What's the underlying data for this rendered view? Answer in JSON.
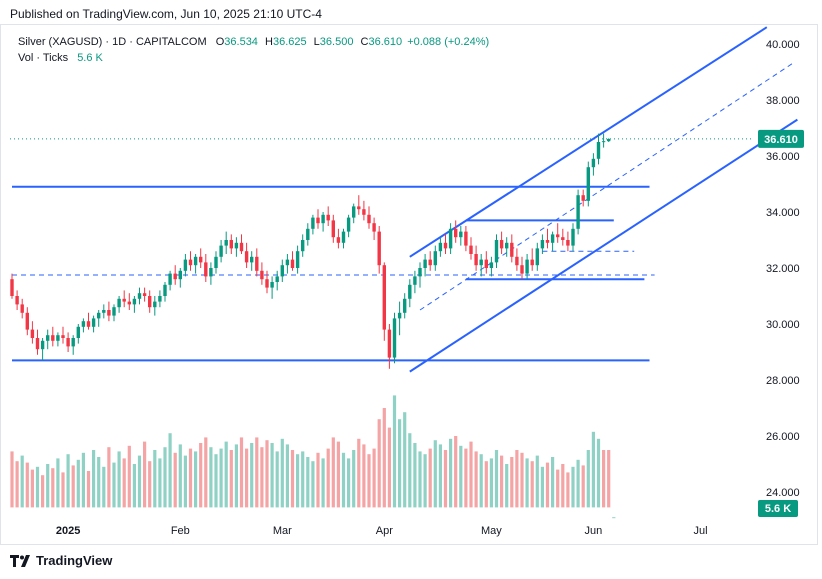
{
  "published": "Published on TradingView.com, Jun 10, 2025 21:10 UTC-4",
  "legend": {
    "symbol": "Silver (XAGUSD) · 1D · CAPITALCOM",
    "o_label": "O",
    "o": "36.534",
    "h_label": "H",
    "h": "36.625",
    "l_label": "L",
    "l": "36.500",
    "c_label": "C",
    "c": "36.610",
    "change": "+0.088 (+0.24%)",
    "vol_label": "Vol · Ticks",
    "vol": "5.6 K"
  },
  "footer": {
    "brand": "TradingView",
    "logo_icon": "tradingview-logo-icon"
  },
  "colors": {
    "up": "#089981",
    "down": "#f23645",
    "vol_up": "#8fd2c5",
    "vol_down": "#f5a4a5",
    "lines": "#2962ff"
  },
  "chart_data": {
    "type": "candlestick",
    "y_axis": {
      "min": 23.0,
      "max": 40.8,
      "ticks": [
        "24.000",
        "26.000",
        "28.000",
        "30.000",
        "32.000",
        "34.000",
        "36.000",
        "38.000",
        "40.000"
      ]
    },
    "x_axis": {
      "tick_labels": [
        "2025",
        "Feb",
        "Mar",
        "Apr",
        "May",
        "Jun",
        "Jul"
      ],
      "tick_index": [
        11,
        33,
        53,
        73,
        94,
        114,
        135
      ]
    },
    "price_label": "36.610",
    "volume_label": "5.6 K",
    "ohlc": [
      [
        31.6,
        31.8,
        30.9,
        31.0
      ],
      [
        31.0,
        31.2,
        30.5,
        30.7
      ],
      [
        30.7,
        30.9,
        30.2,
        30.4
      ],
      [
        30.4,
        30.6,
        29.6,
        29.8
      ],
      [
        29.8,
        30.1,
        29.3,
        29.5
      ],
      [
        29.5,
        29.8,
        28.9,
        29.1
      ],
      [
        29.1,
        29.5,
        28.7,
        29.4
      ],
      [
        29.4,
        29.8,
        29.1,
        29.6
      ],
      [
        29.6,
        29.9,
        29.2,
        29.4
      ],
      [
        29.4,
        29.7,
        29.2,
        29.6
      ],
      [
        29.6,
        29.9,
        29.3,
        29.5
      ],
      [
        29.5,
        29.7,
        29.0,
        29.2
      ],
      [
        29.2,
        29.6,
        28.9,
        29.5
      ],
      [
        29.5,
        30.0,
        29.3,
        29.9
      ],
      [
        29.9,
        30.2,
        29.7,
        30.1
      ],
      [
        30.1,
        30.4,
        29.8,
        29.9
      ],
      [
        29.9,
        30.3,
        29.7,
        30.2
      ],
      [
        30.2,
        30.5,
        29.9,
        30.4
      ],
      [
        30.4,
        30.7,
        30.2,
        30.5
      ],
      [
        30.5,
        30.8,
        30.1,
        30.3
      ],
      [
        30.3,
        30.7,
        30.1,
        30.6
      ],
      [
        30.6,
        31.0,
        30.4,
        30.9
      ],
      [
        30.9,
        31.2,
        30.6,
        30.8
      ],
      [
        30.8,
        31.1,
        30.5,
        30.7
      ],
      [
        30.7,
        31.0,
        30.4,
        30.9
      ],
      [
        30.9,
        31.3,
        30.7,
        31.1
      ],
      [
        31.1,
        31.3,
        30.8,
        31.0
      ],
      [
        31.0,
        31.2,
        30.4,
        30.6
      ],
      [
        30.6,
        31.0,
        30.3,
        30.8
      ],
      [
        30.8,
        31.2,
        30.6,
        31.0
      ],
      [
        31.0,
        31.5,
        30.8,
        31.4
      ],
      [
        31.4,
        31.9,
        31.2,
        31.8
      ],
      [
        31.8,
        32.1,
        31.4,
        31.6
      ],
      [
        31.6,
        32.0,
        31.3,
        31.9
      ],
      [
        31.9,
        32.5,
        31.7,
        32.3
      ],
      [
        32.3,
        32.6,
        31.9,
        32.1
      ],
      [
        32.1,
        32.5,
        31.8,
        32.4
      ],
      [
        32.4,
        32.7,
        32.0,
        32.2
      ],
      [
        32.2,
        32.5,
        31.5,
        31.7
      ],
      [
        31.7,
        32.2,
        31.4,
        32.0
      ],
      [
        32.0,
        32.6,
        31.8,
        32.4
      ],
      [
        32.4,
        33.0,
        32.2,
        32.8
      ],
      [
        32.8,
        33.3,
        32.5,
        33.0
      ],
      [
        33.0,
        33.2,
        32.5,
        32.7
      ],
      [
        32.7,
        33.1,
        32.4,
        32.9
      ],
      [
        32.9,
        33.2,
        32.5,
        32.6
      ],
      [
        32.6,
        32.9,
        32.0,
        32.2
      ],
      [
        32.2,
        32.6,
        31.9,
        32.4
      ],
      [
        32.4,
        32.7,
        31.7,
        31.9
      ],
      [
        31.9,
        32.2,
        31.4,
        31.6
      ],
      [
        31.6,
        31.9,
        31.1,
        31.3
      ],
      [
        31.3,
        31.7,
        30.9,
        31.5
      ],
      [
        31.5,
        31.9,
        31.2,
        31.7
      ],
      [
        31.7,
        32.3,
        31.5,
        32.1
      ],
      [
        32.1,
        32.5,
        31.8,
        32.3
      ],
      [
        32.3,
        32.6,
        31.9,
        32.0
      ],
      [
        32.0,
        32.8,
        31.8,
        32.6
      ],
      [
        32.6,
        33.2,
        32.4,
        33.0
      ],
      [
        33.0,
        33.6,
        32.8,
        33.4
      ],
      [
        33.4,
        33.9,
        33.2,
        33.8
      ],
      [
        33.8,
        34.1,
        33.4,
        33.6
      ],
      [
        33.6,
        34.0,
        33.3,
        33.9
      ],
      [
        33.9,
        34.2,
        33.5,
        33.7
      ],
      [
        33.7,
        33.9,
        32.9,
        33.1
      ],
      [
        33.1,
        33.4,
        32.7,
        32.9
      ],
      [
        32.9,
        33.4,
        32.7,
        33.3
      ],
      [
        33.3,
        33.9,
        33.1,
        33.8
      ],
      [
        33.8,
        34.3,
        33.6,
        34.2
      ],
      [
        34.2,
        34.6,
        33.9,
        34.1
      ],
      [
        34.1,
        34.4,
        33.7,
        33.9
      ],
      [
        33.9,
        34.2,
        33.4,
        33.6
      ],
      [
        33.6,
        33.8,
        33.0,
        33.3
      ],
      [
        33.3,
        33.5,
        31.8,
        32.1
      ],
      [
        32.1,
        32.2,
        29.4,
        29.8
      ],
      [
        29.8,
        30.0,
        28.4,
        28.8
      ],
      [
        28.8,
        30.4,
        28.6,
        30.2
      ],
      [
        30.2,
        30.8,
        29.6,
        30.4
      ],
      [
        30.4,
        31.1,
        30.2,
        30.9
      ],
      [
        30.9,
        31.6,
        30.6,
        31.4
      ],
      [
        31.4,
        31.9,
        31.1,
        31.7
      ],
      [
        31.7,
        32.2,
        31.3,
        32.0
      ],
      [
        32.0,
        32.5,
        31.7,
        32.3
      ],
      [
        32.3,
        32.6,
        31.9,
        32.1
      ],
      [
        32.1,
        32.8,
        31.9,
        32.6
      ],
      [
        32.6,
        33.1,
        32.4,
        32.9
      ],
      [
        32.9,
        33.2,
        32.5,
        32.7
      ],
      [
        32.7,
        33.6,
        32.5,
        33.4
      ],
      [
        33.4,
        33.7,
        32.9,
        33.1
      ],
      [
        33.1,
        33.5,
        32.8,
        33.3
      ],
      [
        33.3,
        33.5,
        32.6,
        32.8
      ],
      [
        32.8,
        33.1,
        32.3,
        32.5
      ],
      [
        32.5,
        32.8,
        31.9,
        32.1
      ],
      [
        32.1,
        32.5,
        31.7,
        32.3
      ],
      [
        32.3,
        32.6,
        31.8,
        32.0
      ],
      [
        32.0,
        32.4,
        31.7,
        32.2
      ],
      [
        32.2,
        33.2,
        32.0,
        33.0
      ],
      [
        33.0,
        33.3,
        32.5,
        32.7
      ],
      [
        32.7,
        33.1,
        32.4,
        32.9
      ],
      [
        32.9,
        33.2,
        32.2,
        32.4
      ],
      [
        32.4,
        32.7,
        31.9,
        32.1
      ],
      [
        32.1,
        32.4,
        31.6,
        31.8
      ],
      [
        31.8,
        32.5,
        31.6,
        32.3
      ],
      [
        32.3,
        32.7,
        31.9,
        32.1
      ],
      [
        32.1,
        32.9,
        31.9,
        32.7
      ],
      [
        32.7,
        33.2,
        32.5,
        33.0
      ],
      [
        33.0,
        33.4,
        32.7,
        32.9
      ],
      [
        32.9,
        33.3,
        32.6,
        33.2
      ],
      [
        33.2,
        33.6,
        32.9,
        33.1
      ],
      [
        33.1,
        33.4,
        32.8,
        33.0
      ],
      [
        33.0,
        33.3,
        32.6,
        32.8
      ],
      [
        32.8,
        33.6,
        32.6,
        33.4
      ],
      [
        33.4,
        34.8,
        33.2,
        34.6
      ],
      [
        34.6,
        34.8,
        34.2,
        34.4
      ],
      [
        34.4,
        35.8,
        34.2,
        35.6
      ],
      [
        35.6,
        36.1,
        35.3,
        35.9
      ],
      [
        35.9,
        36.8,
        35.7,
        36.5
      ],
      [
        36.5,
        36.8,
        36.3,
        36.53
      ],
      [
        36.53,
        36.63,
        36.5,
        36.61
      ]
    ],
    "volume": [
      [
        31,
        25.45,
        "down"
      ],
      [
        31,
        25.1,
        "down"
      ],
      [
        31,
        25.3,
        "up"
      ],
      [
        31,
        25.05,
        "down"
      ],
      [
        31,
        24.8,
        "down"
      ],
      [
        31,
        24.9,
        "up"
      ],
      [
        31,
        24.6,
        "down"
      ],
      [
        31,
        25.0,
        "up"
      ],
      [
        31,
        24.85,
        "down"
      ],
      [
        31,
        25.2,
        "up"
      ],
      [
        31,
        24.7,
        "down"
      ],
      [
        31,
        25.35,
        "up"
      ],
      [
        31,
        24.95,
        "down"
      ],
      [
        31,
        25.15,
        "up"
      ],
      [
        31,
        25.4,
        "up"
      ],
      [
        31,
        24.75,
        "down"
      ],
      [
        31,
        25.5,
        "up"
      ],
      [
        31,
        25.25,
        "up"
      ],
      [
        31,
        24.9,
        "up"
      ],
      [
        31,
        25.6,
        "down"
      ],
      [
        31,
        25.05,
        "up"
      ],
      [
        31,
        25.45,
        "up"
      ],
      [
        31,
        25.2,
        "down"
      ],
      [
        31,
        25.65,
        "down"
      ],
      [
        31,
        25.0,
        "up"
      ],
      [
        31,
        25.3,
        "up"
      ],
      [
        31,
        25.8,
        "down"
      ],
      [
        31,
        25.1,
        "down"
      ],
      [
        31,
        25.5,
        "up"
      ],
      [
        31,
        25.2,
        "up"
      ],
      [
        31,
        25.6,
        "up"
      ],
      [
        31,
        26.1,
        "up"
      ],
      [
        31,
        25.4,
        "down"
      ],
      [
        31,
        25.7,
        "up"
      ],
      [
        31,
        25.3,
        "up"
      ],
      [
        31,
        25.55,
        "down"
      ],
      [
        31,
        25.45,
        "up"
      ],
      [
        31,
        25.75,
        "down"
      ],
      [
        31,
        25.95,
        "down"
      ],
      [
        31,
        25.6,
        "up"
      ],
      [
        31,
        25.35,
        "up"
      ],
      [
        31,
        25.55,
        "up"
      ],
      [
        31,
        25.8,
        "up"
      ],
      [
        31,
        25.5,
        "down"
      ],
      [
        31,
        25.7,
        "up"
      ],
      [
        31,
        25.95,
        "down"
      ],
      [
        31,
        25.55,
        "down"
      ],
      [
        31,
        25.75,
        "up"
      ],
      [
        31,
        25.95,
        "down"
      ],
      [
        31,
        25.6,
        "down"
      ],
      [
        31,
        25.85,
        "down"
      ],
      [
        31,
        25.75,
        "up"
      ],
      [
        31,
        25.45,
        "up"
      ],
      [
        31,
        25.9,
        "up"
      ],
      [
        31,
        25.7,
        "up"
      ],
      [
        31,
        25.5,
        "down"
      ],
      [
        31,
        25.35,
        "up"
      ],
      [
        31,
        25.45,
        "up"
      ],
      [
        31,
        25.25,
        "up"
      ],
      [
        31,
        25.1,
        "up"
      ],
      [
        31,
        25.4,
        "down"
      ],
      [
        31,
        25.2,
        "up"
      ],
      [
        31,
        25.55,
        "down"
      ],
      [
        31,
        25.95,
        "down"
      ],
      [
        31,
        25.8,
        "down"
      ],
      [
        31,
        25.4,
        "up"
      ],
      [
        31,
        25.2,
        "up"
      ],
      [
        31,
        25.5,
        "up"
      ],
      [
        31,
        25.9,
        "down"
      ],
      [
        31,
        25.7,
        "down"
      ],
      [
        31,
        25.35,
        "down"
      ],
      [
        31,
        25.55,
        "down"
      ],
      [
        31,
        26.6,
        "down"
      ],
      [
        31,
        27.0,
        "down"
      ],
      [
        31,
        26.3,
        "down"
      ],
      [
        31,
        27.45,
        "up"
      ],
      [
        31,
        26.6,
        "up"
      ],
      [
        31,
        26.85,
        "up"
      ],
      [
        31,
        26.1,
        "up"
      ],
      [
        31,
        25.75,
        "up"
      ],
      [
        31,
        25.45,
        "up"
      ],
      [
        31,
        25.35,
        "up"
      ],
      [
        31,
        25.55,
        "down"
      ],
      [
        31,
        25.85,
        "up"
      ],
      [
        31,
        25.7,
        "up"
      ],
      [
        31,
        25.5,
        "down"
      ],
      [
        31,
        25.9,
        "up"
      ],
      [
        31,
        26.0,
        "down"
      ],
      [
        31,
        25.65,
        "up"
      ],
      [
        31,
        25.55,
        "down"
      ],
      [
        31,
        25.8,
        "down"
      ],
      [
        31,
        25.45,
        "down"
      ],
      [
        31,
        25.35,
        "up"
      ],
      [
        31,
        25.1,
        "down"
      ],
      [
        31,
        25.2,
        "up"
      ],
      [
        31,
        25.5,
        "up"
      ],
      [
        31,
        25.3,
        "down"
      ],
      [
        31,
        25.0,
        "up"
      ],
      [
        31,
        25.25,
        "down"
      ],
      [
        31,
        25.5,
        "down"
      ],
      [
        31,
        25.4,
        "down"
      ],
      [
        31,
        25.2,
        "up"
      ],
      [
        31,
        25.1,
        "down"
      ],
      [
        31,
        25.3,
        "up"
      ],
      [
        31,
        24.9,
        "up"
      ],
      [
        31,
        25.05,
        "down"
      ],
      [
        31,
        25.25,
        "up"
      ],
      [
        31,
        24.8,
        "down"
      ],
      [
        31,
        25.0,
        "down"
      ],
      [
        31,
        24.7,
        "down"
      ],
      [
        31,
        24.9,
        "up"
      ],
      [
        31,
        25.15,
        "up"
      ],
      [
        31,
        24.95,
        "down"
      ],
      [
        31,
        25.5,
        "up"
      ],
      [
        31,
        26.15,
        "up"
      ],
      [
        31,
        25.9,
        "up"
      ],
      [
        31,
        25.5,
        "down"
      ],
      [
        31,
        25.5,
        "down"
      ],
      [
        31,
        23.1,
        "up"
      ]
    ],
    "lines": [
      {
        "name": "upper-support",
        "from": [
          0,
          34.9
        ],
        "to": [
          125,
          34.9
        ],
        "style": "solid"
      },
      {
        "name": "lower-support",
        "from": [
          0,
          28.7
        ],
        "to": [
          125,
          28.7
        ],
        "style": "solid"
      },
      {
        "name": "mid-dashed",
        "from": [
          0,
          31.75
        ],
        "to": [
          126,
          31.75
        ],
        "style": "dashed"
      },
      {
        "name": "box-top",
        "from": [
          89,
          33.7
        ],
        "to": [
          118,
          33.7
        ],
        "style": "solid"
      },
      {
        "name": "box-bottom",
        "from": [
          89,
          31.6
        ],
        "to": [
          124,
          31.6
        ],
        "style": "solid"
      },
      {
        "name": "box-mid",
        "from": [
          104,
          32.6
        ],
        "to": [
          122,
          32.6
        ],
        "style": "dashed"
      },
      {
        "name": "channel-upper",
        "from": [
          78,
          32.4
        ],
        "to": [
          148,
          40.6
        ],
        "style": "solid"
      },
      {
        "name": "channel-lower",
        "from": [
          78,
          28.3
        ],
        "to": [
          154,
          37.3
        ],
        "style": "solid"
      },
      {
        "name": "channel-mid",
        "from": [
          80,
          30.5
        ],
        "to": [
          153,
          39.3
        ],
        "style": "dashed"
      }
    ],
    "last_price_dotted": 36.61
  }
}
